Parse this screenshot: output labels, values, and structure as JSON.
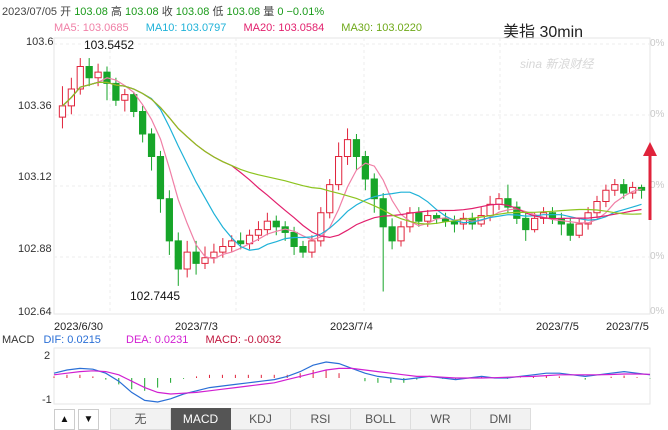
{
  "info": {
    "date": "2023/07/05",
    "open_label": "开",
    "open": "103.08",
    "high_label": "高",
    "high": "103.08",
    "close_label": "收",
    "close": "103.08",
    "low_label": "低",
    "low": "103.08",
    "vol_label": "量",
    "vol": "0",
    "change": "−0.01%"
  },
  "ma": [
    {
      "label": "MA5: 103.0685",
      "color": "#f07fa6"
    },
    {
      "label": "MA10: 103.0797",
      "color": "#1fb2d8"
    },
    {
      "label": "MA20: 103.0584",
      "color": "#e2206d"
    },
    {
      "label": "MA30: 103.0220",
      "color": "#8cc41e"
    }
  ],
  "title": "美指 30min",
  "watermark": "sina 新浪财经",
  "y_axis": [
    "103.6",
    "103.36",
    "103.12",
    "102.88",
    "102.64"
  ],
  "pct_axis": [
    "0%",
    "0%",
    "0%",
    "0%",
    "0%"
  ],
  "dates": [
    "2023/6/30",
    "2023/7/3",
    "2023/7/4",
    "2023/7/5",
    "2023/7/5"
  ],
  "annotations": {
    "high": "103.5452",
    "low": "102.7445"
  },
  "macd": {
    "label": "MACD",
    "dif": "DIF: 0.0215",
    "dif_color": "#2a6fd6",
    "dea": "DEA: 0.0231",
    "dea_color": "#d11fd1",
    "macd": "MACD: -0.0032",
    "macd_color": "#c0143c",
    "axis": [
      "2",
      "-1"
    ]
  },
  "tabs": [
    "无",
    "MACD",
    "KDJ",
    "RSI",
    "BOLL",
    "WR",
    "DMI"
  ],
  "active_tab": "MACD",
  "nav": {
    "up": "▲",
    "down": "▼"
  },
  "colors": {
    "up": "#e0233b",
    "down": "#17a529",
    "ma5": "#f07fa6",
    "ma10": "#1fb2d8",
    "ma20": "#e2206d",
    "ma30": "#8cc41e"
  },
  "chart_data": {
    "type": "candlestick",
    "ylim": [
      102.64,
      103.6
    ],
    "candles": [
      [
        103.34,
        103.38,
        103.45,
        103.3
      ],
      [
        103.38,
        103.44,
        103.48,
        103.35
      ],
      [
        103.44,
        103.52,
        103.55,
        103.42
      ],
      [
        103.52,
        103.48,
        103.55,
        103.45
      ],
      [
        103.48,
        103.5,
        103.53,
        103.45
      ],
      [
        103.5,
        103.46,
        103.52,
        103.4
      ],
      [
        103.46,
        103.4,
        103.48,
        103.38
      ],
      [
        103.4,
        103.42,
        103.44,
        103.36
      ],
      [
        103.42,
        103.36,
        103.43,
        103.34
      ],
      [
        103.36,
        103.28,
        103.38,
        103.25
      ],
      [
        103.28,
        103.2,
        103.3,
        103.15
      ],
      [
        103.2,
        103.05,
        103.22,
        103.0
      ],
      [
        103.05,
        102.9,
        103.08,
        102.85
      ],
      [
        102.9,
        102.8,
        102.93,
        102.74
      ],
      [
        102.8,
        102.86,
        102.9,
        102.77
      ],
      [
        102.86,
        102.82,
        102.9,
        102.78
      ],
      [
        102.82,
        102.84,
        102.88,
        102.8
      ],
      [
        102.84,
        102.86,
        102.89,
        102.82
      ],
      [
        102.86,
        102.88,
        102.91,
        102.84
      ],
      [
        102.88,
        102.9,
        102.92,
        102.86
      ],
      [
        102.9,
        102.89,
        102.93,
        102.87
      ],
      [
        102.89,
        102.92,
        102.94,
        102.87
      ],
      [
        102.92,
        102.94,
        102.97,
        102.9
      ],
      [
        102.94,
        102.97,
        103.0,
        102.92
      ],
      [
        102.97,
        102.95,
        102.99,
        102.92
      ],
      [
        102.95,
        102.93,
        102.97,
        102.9
      ],
      [
        102.93,
        102.88,
        102.95,
        102.85
      ],
      [
        102.88,
        102.86,
        102.9,
        102.84
      ],
      [
        102.86,
        102.9,
        102.92,
        102.84
      ],
      [
        102.9,
        103.0,
        103.02,
        102.88
      ],
      [
        103.0,
        103.1,
        103.12,
        102.98
      ],
      [
        103.1,
        103.2,
        103.25,
        103.08
      ],
      [
        103.2,
        103.26,
        103.3,
        103.17
      ],
      [
        103.26,
        103.2,
        103.28,
        103.15
      ],
      [
        103.2,
        103.12,
        103.22,
        103.08
      ],
      [
        103.12,
        103.05,
        103.14,
        103.0
      ],
      [
        103.05,
        102.95,
        103.07,
        102.72
      ],
      [
        102.95,
        102.9,
        102.98,
        102.87
      ],
      [
        102.9,
        102.95,
        102.97,
        102.88
      ],
      [
        102.95,
        103.0,
        103.02,
        102.93
      ],
      [
        103.0,
        102.97,
        103.02,
        102.95
      ],
      [
        102.97,
        102.99,
        103.01,
        102.95
      ],
      [
        102.99,
        102.98,
        103.0,
        102.96
      ],
      [
        102.98,
        102.97,
        103.0,
        102.95
      ],
      [
        102.97,
        102.96,
        102.99,
        102.93
      ],
      [
        102.96,
        102.98,
        103.0,
        102.94
      ],
      [
        102.98,
        102.96,
        103.0,
        102.94
      ],
      [
        102.96,
        102.99,
        103.02,
        102.95
      ],
      [
        102.99,
        103.03,
        103.06,
        102.97
      ],
      [
        103.03,
        103.05,
        103.07,
        103.01
      ],
      [
        103.05,
        103.02,
        103.1,
        103.0
      ],
      [
        103.02,
        102.98,
        103.04,
        102.96
      ],
      [
        102.98,
        102.94,
        103.0,
        102.9
      ],
      [
        102.94,
        102.98,
        103.0,
        102.93
      ],
      [
        102.98,
        103.0,
        103.02,
        102.96
      ],
      [
        103.0,
        102.98,
        103.02,
        102.96
      ],
      [
        102.98,
        102.96,
        103.0,
        102.92
      ],
      [
        102.96,
        102.92,
        102.98,
        102.9
      ],
      [
        102.92,
        102.96,
        102.98,
        102.91
      ],
      [
        102.96,
        103.0,
        103.02,
        102.94
      ],
      [
        103.0,
        103.04,
        103.06,
        102.98
      ],
      [
        103.04,
        103.08,
        103.1,
        103.02
      ],
      [
        103.08,
        103.1,
        103.12,
        103.06
      ],
      [
        103.1,
        103.07,
        103.12,
        103.05
      ],
      [
        103.07,
        103.09,
        103.11,
        103.05
      ],
      [
        103.09,
        103.08,
        103.1,
        103.05
      ]
    ],
    "macd_dif": [
      0.3,
      0.5,
      0.6,
      0.55,
      0.3,
      -0.2,
      -0.9,
      -1.4,
      -1.5,
      -1.3,
      -1.0,
      -0.8,
      -0.6,
      -0.5,
      -0.4,
      -0.3,
      -0.2,
      -0.1,
      0.1,
      0.4,
      0.8,
      1.0,
      0.9,
      0.6,
      0.3,
      0.1,
      0.0,
      -0.1,
      0.0,
      0.1,
      0.0,
      -0.1,
      0.0,
      0.1,
      0.0,
      0.0,
      0.1,
      0.2,
      0.3,
      0.3,
      0.2,
      0.1,
      0.2,
      0.3,
      0.4,
      0.3,
      0.2
    ],
    "macd_dea": [
      0.2,
      0.3,
      0.4,
      0.45,
      0.4,
      0.2,
      -0.2,
      -0.6,
      -0.9,
      -1.0,
      -0.95,
      -0.9,
      -0.8,
      -0.7,
      -0.6,
      -0.5,
      -0.4,
      -0.3,
      -0.1,
      0.1,
      0.3,
      0.5,
      0.6,
      0.6,
      0.5,
      0.4,
      0.3,
      0.2,
      0.1,
      0.1,
      0.05,
      0.0,
      0.0,
      0.0,
      0.02,
      0.05,
      0.08,
      0.1,
      0.15,
      0.2,
      0.2,
      0.2,
      0.2,
      0.22,
      0.25,
      0.25,
      0.23
    ]
  }
}
